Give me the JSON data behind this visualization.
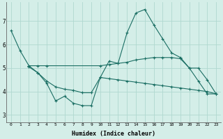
{
  "xlabel": "Humidex (Indice chaleur)",
  "xlim": [
    -0.5,
    23.5
  ],
  "ylim": [
    2.7,
    7.8
  ],
  "yticks": [
    3,
    4,
    5,
    6,
    7
  ],
  "xticks": [
    0,
    1,
    2,
    3,
    4,
    5,
    6,
    7,
    8,
    9,
    10,
    11,
    12,
    13,
    14,
    15,
    16,
    17,
    18,
    19,
    20,
    21,
    22,
    23
  ],
  "bg_color": "#d4eee8",
  "line_color": "#1a6e63",
  "grid_color": "#b0d8d0",
  "lines": [
    {
      "x": [
        0,
        1,
        2,
        3,
        4,
        5,
        6,
        7,
        8,
        9,
        10,
        11,
        12,
        13,
        14,
        15,
        16,
        17,
        18,
        19,
        20,
        21,
        22,
        23
      ],
      "y": [
        6.6,
        5.75,
        5.1,
        4.8,
        4.35,
        3.6,
        3.8,
        3.5,
        3.4,
        3.4,
        4.6,
        5.3,
        5.2,
        6.5,
        7.35,
        7.5,
        6.85,
        6.25,
        5.65,
        5.45,
        5.0,
        4.45,
        3.9,
        3.9
      ]
    },
    {
      "x": [
        2,
        3,
        4,
        10,
        11,
        12,
        13,
        14,
        15,
        16,
        17,
        18,
        19,
        20,
        21,
        22,
        23
      ],
      "y": [
        5.1,
        5.1,
        5.1,
        5.1,
        5.15,
        5.2,
        5.25,
        5.35,
        5.4,
        5.45,
        5.45,
        5.45,
        5.4,
        5.0,
        5.0,
        4.5,
        3.9
      ]
    },
    {
      "x": [
        2,
        3,
        4,
        5,
        6,
        7,
        8,
        9,
        10,
        11,
        12,
        13,
        14,
        15,
        16,
        17,
        18,
        19,
        20,
        21,
        22,
        23
      ],
      "y": [
        5.05,
        4.8,
        4.45,
        4.2,
        4.1,
        4.05,
        3.95,
        3.95,
        4.6,
        4.55,
        4.5,
        4.45,
        4.4,
        4.35,
        4.3,
        4.25,
        4.2,
        4.15,
        4.1,
        4.05,
        4.0,
        3.9
      ]
    }
  ]
}
